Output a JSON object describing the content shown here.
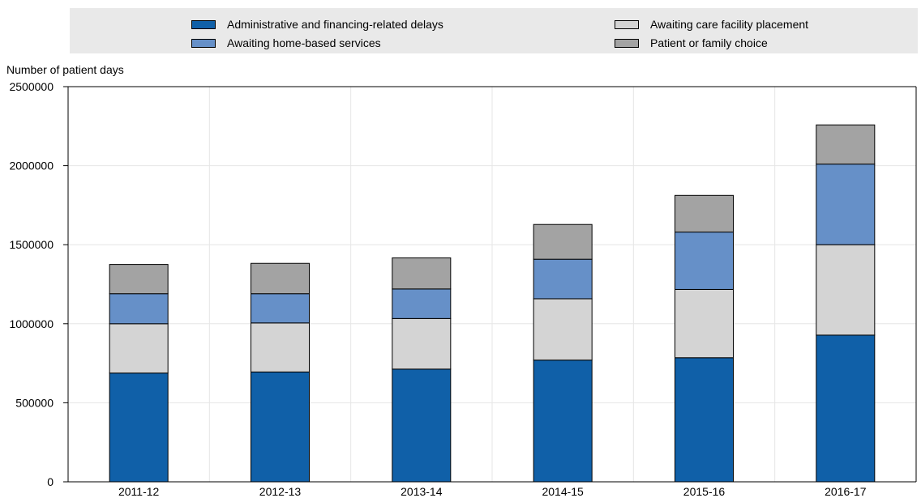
{
  "chart_data": {
    "type": "bar",
    "stacked": true,
    "title": "",
    "xlabel": "",
    "ylabel": "Number of patient days",
    "ylim": [
      0,
      2500000
    ],
    "yticks": [
      "0",
      "500000",
      "1000000",
      "1500000",
      "2000000",
      "2500000"
    ],
    "categories": [
      "2011-12",
      "2012-13",
      "2013-14",
      "2014-15",
      "2015-16",
      "2016-17"
    ],
    "series": [
      {
        "name": "Administrative and financing-related delays",
        "color": "#1060a8",
        "values": [
          688000,
          695000,
          713000,
          770000,
          785000,
          928000
        ]
      },
      {
        "name": "Awaiting care facility placement",
        "color": "#d4d4d4",
        "values": [
          312000,
          310000,
          320000,
          388000,
          432000,
          572000
        ]
      },
      {
        "name": "Awaiting home-based services",
        "color": "#6690c8",
        "values": [
          190000,
          185000,
          187000,
          250000,
          363000,
          510000
        ]
      },
      {
        "name": "Patient or family choice",
        "color": "#a3a3a3",
        "values": [
          185000,
          192000,
          197000,
          220000,
          232000,
          248000
        ]
      }
    ],
    "legend_position": "top",
    "grid": true
  },
  "legend": [
    {
      "label": "Administrative and financing-related delays",
      "color": "#1060a8"
    },
    {
      "label": "Awaiting home-based services",
      "color": "#6690c8"
    },
    {
      "label": "Awaiting care facility placement",
      "color": "#d4d4d4"
    },
    {
      "label": "Patient or family choice",
      "color": "#a3a3a3"
    }
  ]
}
